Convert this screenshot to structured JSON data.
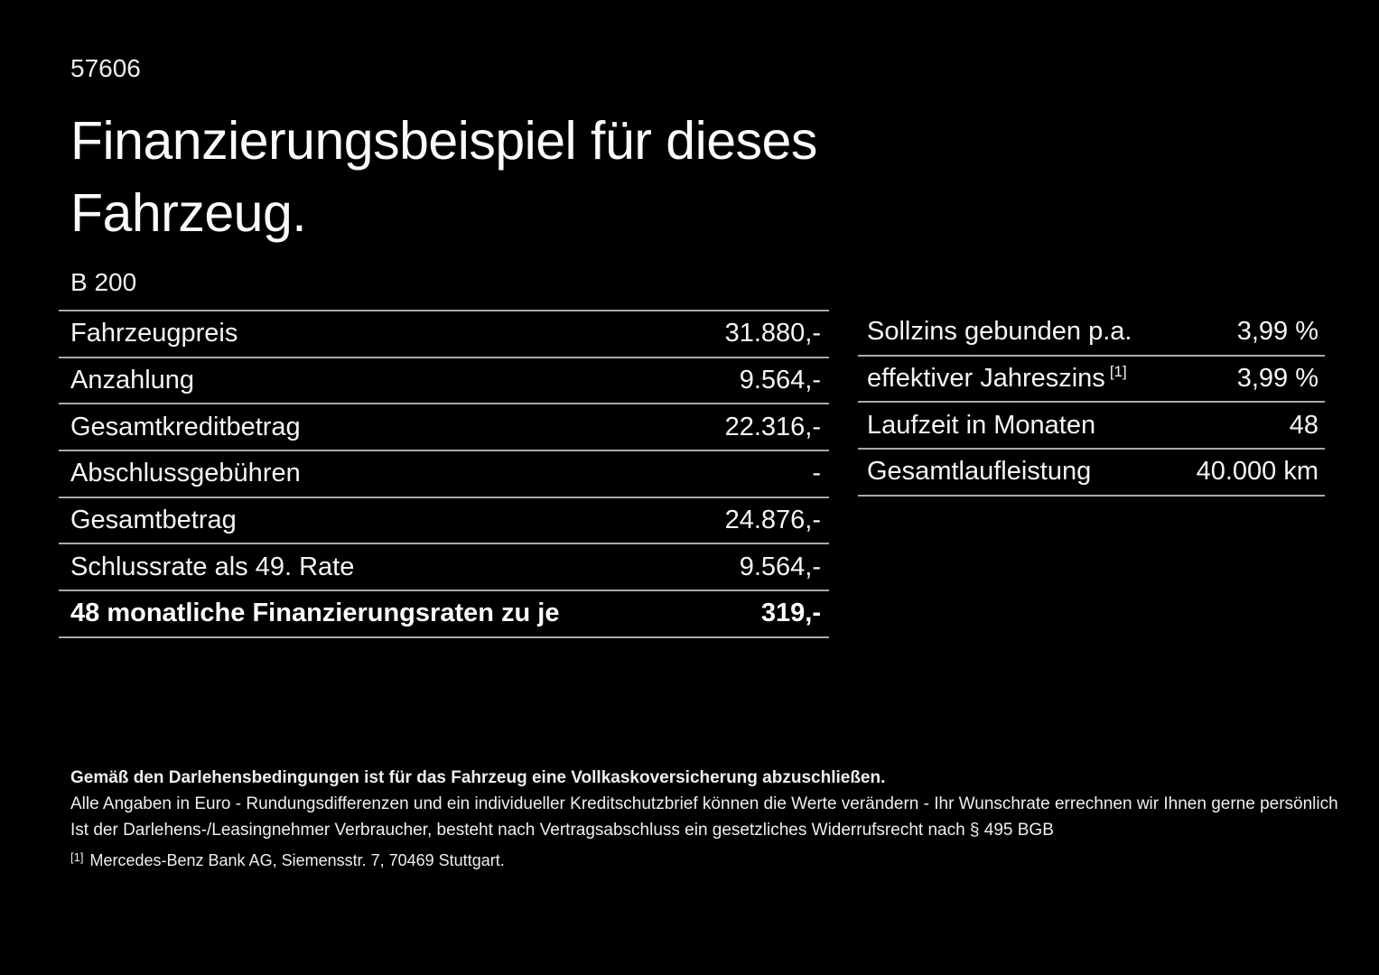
{
  "page": {
    "doc_number": "57606",
    "title_line1": "Finanzierungsbeispiel für dieses",
    "title_line2": "Fahrzeug.",
    "model": "B 200"
  },
  "colors": {
    "background": "#000000",
    "text": "#f5f5f5",
    "divider": "#a9a9a9"
  },
  "finance_table": {
    "rows": [
      {
        "label": "Fahrzeugpreis",
        "value": "31.880,-"
      },
      {
        "label": "Anzahlung",
        "value": "9.564,-"
      },
      {
        "label": "Gesamtkreditbetrag",
        "value": "22.316,-"
      },
      {
        "label": "Abschlussgebühren",
        "value": "-"
      },
      {
        "label": "Gesamtbetrag",
        "value": "24.876,-"
      },
      {
        "label": "Schlussrate als 49. Rate",
        "value": "9.564,-"
      },
      {
        "label": "48 monatliche Finanzierungsraten zu je",
        "value": "319,-"
      }
    ]
  },
  "conditions_table": {
    "rows": [
      {
        "label": "Sollzins gebunden p.a.",
        "sup": "",
        "value": "3,99 %"
      },
      {
        "label": "effektiver Jahreszins",
        "sup": "[1]",
        "value": "3,99 %"
      },
      {
        "label": "Laufzeit in Monaten",
        "sup": "",
        "value": "48"
      },
      {
        "label": "Gesamtlaufleistung",
        "sup": "",
        "value": "40.000 km"
      }
    ]
  },
  "footer": {
    "insurance_note": "Gemäß den Darlehensbedingungen ist für das Fahrzeug eine Vollkaskoversicherung abzuschließen.",
    "disclaimer_line1": "Alle Angaben in Euro - Rundungsdifferenzen und ein individueller Kreditschutzbrief können die Werte verändern - Ihr Wunschrate errechnen wir Ihnen gerne persönlich",
    "disclaimer_line2": "Ist der Darlehens-/Leasingnehmer Verbraucher, besteht nach Vertragsabschluss ein gesetzliches Widerrufsrecht nach § 495 BGB",
    "footnote_marker": "[1]",
    "footnote_text": "Mercedes-Benz Bank AG, Siemensstr. 7, 70469 Stuttgart."
  }
}
